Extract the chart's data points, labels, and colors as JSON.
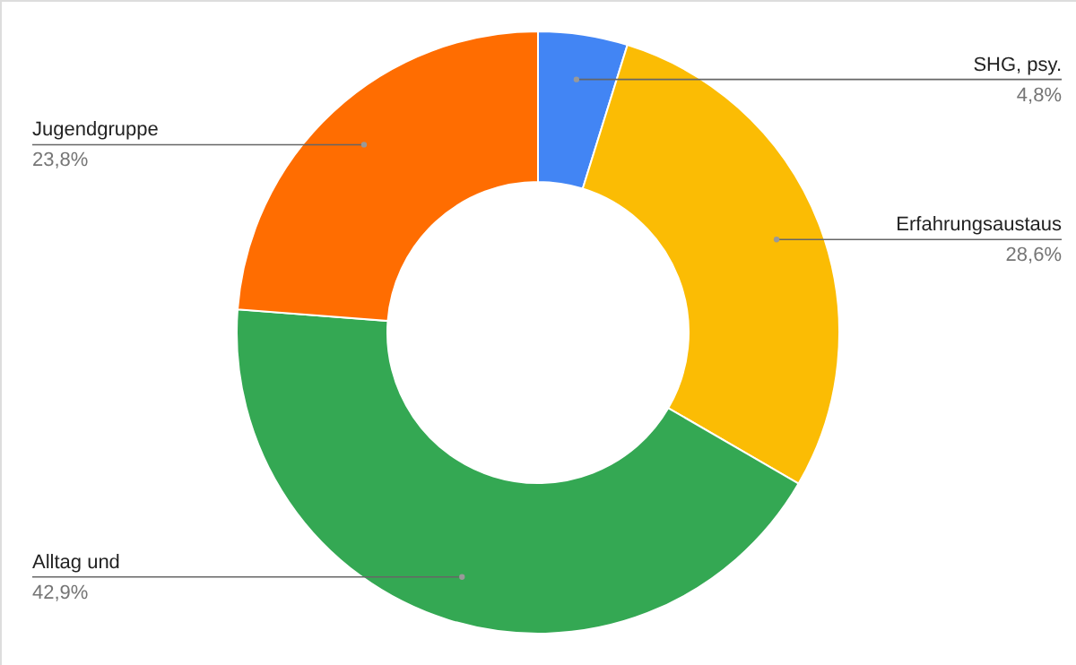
{
  "chart_data": {
    "type": "donut",
    "categories": [
      "SHG, psy.",
      "Erfahrungsaustaus",
      "Alltag und",
      "Jugendgruppe"
    ],
    "values": [
      4.8,
      28.6,
      42.9,
      23.8
    ],
    "colors": [
      "#4285f4",
      "#fbbc04",
      "#34a853",
      "#ff6d01"
    ],
    "value_labels": [
      "4,8%",
      "28,6%",
      "42,9%",
      "23,8%"
    ],
    "legend": false
  }
}
